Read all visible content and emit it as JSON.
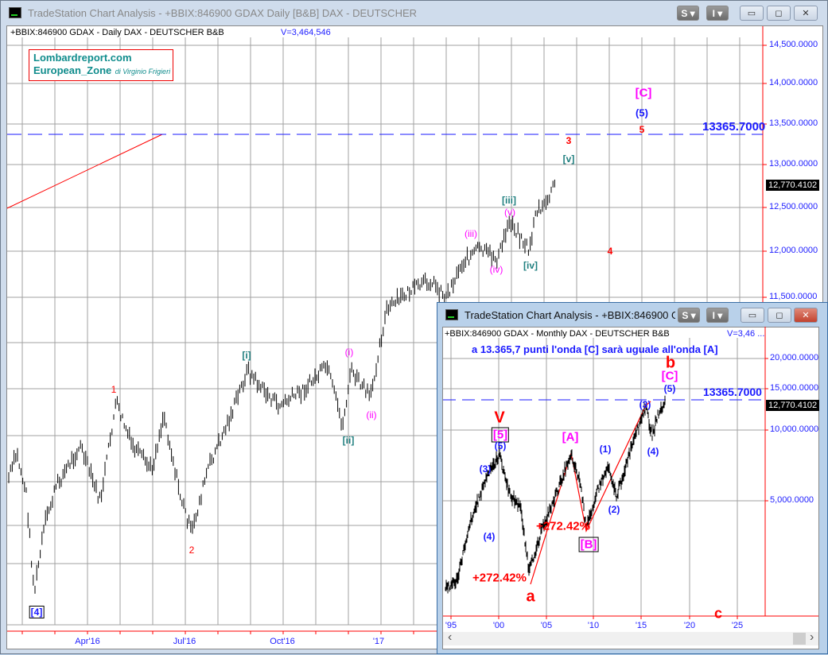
{
  "main": {
    "title": "TradeStation Chart Analysis - +BBIX:846900 GDAX Daily [B&B] DAX - DEUTSCHER",
    "header": "+BBIX:846900 GDAX - Daily  DAX - DEUTSCHER  B&B",
    "volume": "V=3,464,546",
    "logo": {
      "line1": "Lombardreport.com",
      "line2": "European_Zone",
      "line3": "di Virginio Frigieri"
    },
    "buttons": {
      "s": "S ▾",
      "i": "I ▾",
      "min": "▭",
      "max": "◻",
      "close": "✕"
    },
    "y_axis": [
      "14,500.0000",
      "14,000.0000",
      "13,500.0000",
      "13,000.0000",
      "12,500.0000",
      "12,000.0000",
      "11,500.0000"
    ],
    "x_axis": [
      "Apr'16",
      "Jul'16",
      "Oct'16",
      "'17"
    ],
    "last_price": "12,770.4102",
    "target_label": "13365.7000",
    "waves": [
      "[4]",
      "1",
      "2",
      "[i]",
      "[ii]",
      "(i)",
      "(ii)",
      "(iii)",
      "(iv)",
      "(v)",
      "[iii]",
      "[iv]",
      "[v]",
      "3",
      "4",
      "5",
      "(5)",
      "[C]"
    ]
  },
  "inset": {
    "title": "TradeStation Chart Analysis - +BBIX:846900 G...",
    "header": "+BBIX:846900 GDAX - Monthly  DAX - DEUTSCHER  B&B",
    "volume": "V=3,46 ...",
    "note": "a 13.365,7 punti l'onda [C] sarà uguale all'onda [A]",
    "buttons": {
      "s": "S ▾",
      "i": "I ▾",
      "min": "▭",
      "max": "◻",
      "close": "✕"
    },
    "y_axis": [
      "20,000.0000",
      "15,000.0000",
      "10,000.0000",
      "5,000.0000"
    ],
    "x_axis": [
      "'95",
      "'00",
      "'05",
      "'10",
      "'15",
      "'20",
      "'25"
    ],
    "last_price": "12,770.4102",
    "target_label": "13365.7000",
    "waves": [
      "V",
      "[5]",
      "(5)",
      "(3)",
      "(4)",
      "+272.42%",
      "a",
      "[A]",
      "(1)",
      "(2)",
      "+272.42%",
      "[B]",
      "(3)",
      "(4)",
      "(5)",
      "[C]",
      "b",
      "c"
    ],
    "scroll_left": "‹",
    "scroll_right": "›"
  },
  "colors": {
    "red": "#ff0000",
    "blue": "#1a1aff",
    "magenta": "#ff00ff",
    "teal": "#1f7f7f",
    "logo": "#0f8c8c"
  }
}
